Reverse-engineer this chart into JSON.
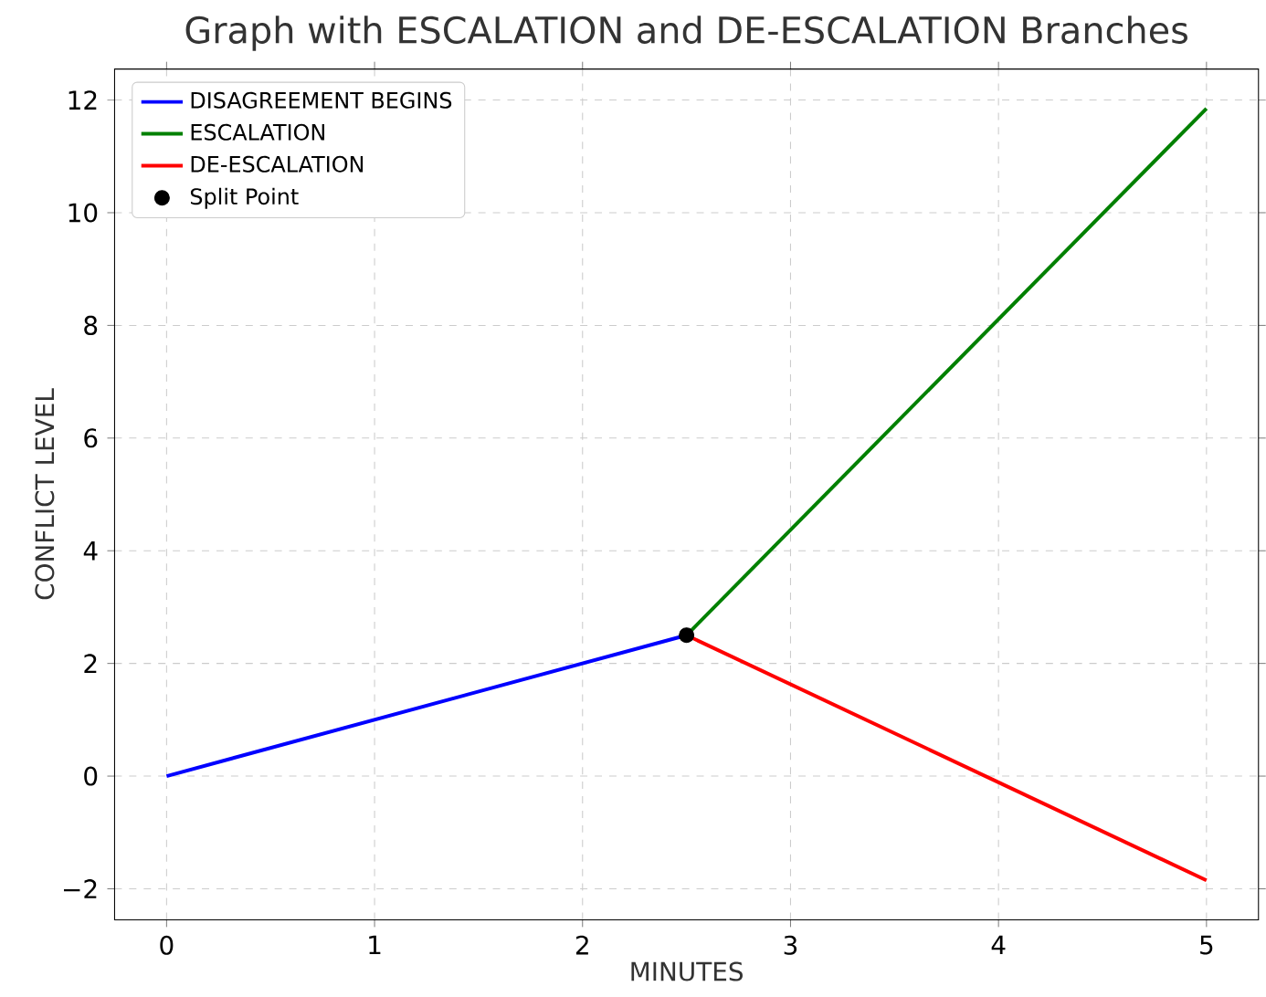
{
  "chart_data": {
    "type": "line",
    "title": "Graph with ESCALATION and DE-ESCALATION Branches",
    "xlabel": "MINUTES",
    "ylabel": "CONFLICT LEVEL",
    "series": [
      {
        "name": "DISAGREEMENT BEGINS",
        "color": "#0000ff",
        "x": [
          0,
          2.5
        ],
        "values": [
          0,
          2.5
        ]
      },
      {
        "name": "ESCALATION",
        "color": "#008000",
        "x": [
          2.5,
          5
        ],
        "values": [
          2.5,
          11.85
        ]
      },
      {
        "name": "DE-ESCALATION",
        "color": "#ff0000",
        "x": [
          2.5,
          5
        ],
        "values": [
          2.5,
          -1.85
        ]
      },
      {
        "name": "Split Point",
        "type": "scatter",
        "color": "#000000",
        "x": [
          2.5
        ],
        "values": [
          2.5
        ]
      }
    ],
    "xlim": [
      -0.25,
      5.25
    ],
    "ylim": [
      -2.55,
      12.55
    ],
    "xticks": [
      0,
      1,
      2,
      3,
      4,
      5
    ],
    "yticks": [
      {
        "value": -2,
        "label": "−2"
      },
      0,
      2,
      4,
      6,
      8,
      10,
      12
    ],
    "grid": true,
    "legend": "top left"
  }
}
